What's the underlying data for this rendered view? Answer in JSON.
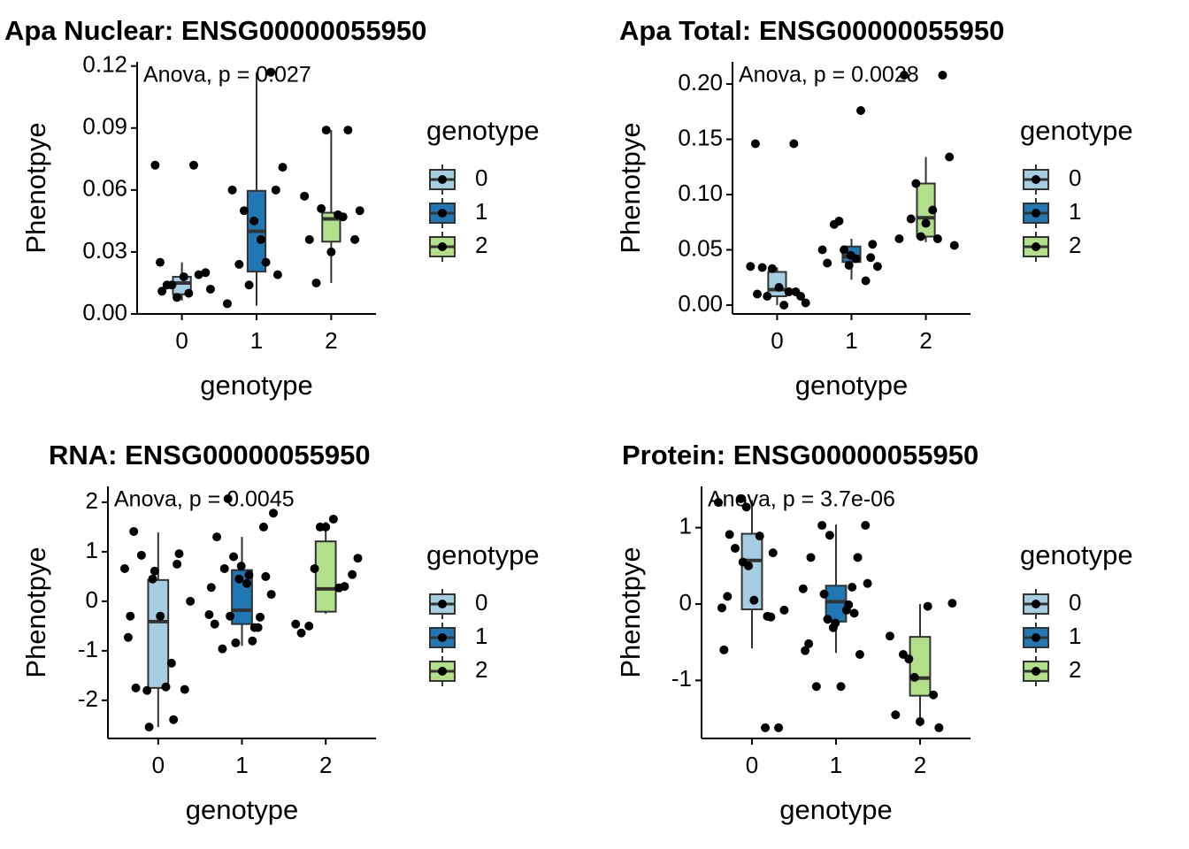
{
  "chart_data": [
    {
      "type": "box",
      "title": "Apa Nuclear: ENSG00000055950",
      "annotation": "Anova, p = 0.027",
      "x_label": "genotype",
      "y_label": "Phenotpye",
      "legend_title": "genotype",
      "categories": [
        "0",
        "1",
        "2"
      ],
      "ylim": [
        0,
        0.122
      ],
      "yticks": [
        {
          "value": 0,
          "label": "0.00"
        },
        {
          "value": 0.03,
          "label": "0.03"
        },
        {
          "value": 0.06,
          "label": "0.06"
        },
        {
          "value": 0.09,
          "label": "0.09"
        },
        {
          "value": 0.12,
          "label": "0.12"
        }
      ],
      "series": [
        {
          "name": "0",
          "color": "#a6cee3",
          "box": {
            "whislo": 0.0065,
            "q1": 0.0095,
            "median": 0.015,
            "q3": 0.018,
            "whishi": 0.025
          },
          "points": [
            0.025,
            0.019,
            0.008,
            0.072,
            0.072,
            0.014,
            0.012,
            0.01,
            0.014,
            0.02,
            0.018,
            0.011
          ]
        },
        {
          "name": "1",
          "color": "#1f78b4",
          "box": {
            "whislo": 0.004,
            "q1": 0.0205,
            "median": 0.04,
            "q3": 0.0596,
            "whishi": 0.117
          },
          "points": [
            0.06,
            0.045,
            0.06,
            0.117,
            0.014,
            0.005,
            0.025,
            0.05,
            0.071,
            0.036,
            0.024,
            0.019
          ]
        },
        {
          "name": "2",
          "color": "#b2df8a",
          "box": {
            "whislo": 0.015,
            "q1": 0.035,
            "median": 0.046,
            "q3": 0.049,
            "whishi": 0.089
          },
          "points": [
            0.03,
            0.036,
            0.089,
            0.089,
            0.057,
            0.047,
            0.051,
            0.05,
            0.048,
            0.015,
            0.036
          ]
        }
      ]
    },
    {
      "type": "box",
      "title": "Apa Total: ENSG00000055950",
      "annotation": "Anova, p = 0.0028",
      "x_label": "genotype",
      "y_label": "Phenotpye",
      "legend_title": "genotype",
      "categories": [
        "0",
        "1",
        "2"
      ],
      "ylim": [
        -0.008,
        0.22
      ],
      "yticks": [
        {
          "value": 0,
          "label": "0.00"
        },
        {
          "value": 0.05,
          "label": "0.05"
        },
        {
          "value": 0.1,
          "label": "0.10"
        },
        {
          "value": 0.15,
          "label": "0.15"
        },
        {
          "value": 0.2,
          "label": "0.20"
        }
      ],
      "series": [
        {
          "name": "0",
          "color": "#a6cee3",
          "box": {
            "whislo": 0.0,
            "q1": 0.008,
            "median": 0.014,
            "q3": 0.03,
            "whishi": 0.034
          },
          "points": [
            0.146,
            0.146,
            0.033,
            0.035,
            0.012,
            0.008,
            0.002,
            0.0,
            0.034,
            0.008,
            0.016,
            0.01,
            0.012
          ]
        },
        {
          "name": "1",
          "color": "#1f78b4",
          "box": {
            "whislo": 0.023,
            "q1": 0.039,
            "median": 0.044,
            "q3": 0.053,
            "whishi": 0.06
          },
          "points": [
            0.043,
            0.036,
            0.038,
            0.022,
            0.05,
            0.05,
            0.176,
            0.076,
            0.035,
            0.042,
            0.073,
            0.055,
            0.045
          ]
        },
        {
          "name": "2",
          "color": "#b2df8a",
          "box": {
            "whislo": 0.057,
            "q1": 0.062,
            "median": 0.079,
            "q3": 0.11,
            "whishi": 0.134
          },
          "points": [
            0.074,
            0.208,
            0.208,
            0.062,
            0.06,
            0.06,
            0.11,
            0.054,
            0.086,
            0.078,
            0.134
          ]
        }
      ]
    },
    {
      "type": "box",
      "title": "RNA: ENSG00000055950",
      "annotation": "Anova, p = 0.0045",
      "x_label": "genotype",
      "y_label": "Phenotpye",
      "legend_title": "genotype",
      "categories": [
        "0",
        "1",
        "2"
      ],
      "ylim": [
        -2.77,
        2.32
      ],
      "yticks": [
        -2,
        -1,
        0,
        1,
        2
      ],
      "series": [
        {
          "name": "0",
          "color": "#a6cee3",
          "box": {
            "whislo": -2.54,
            "q1": -1.75,
            "median": -0.41,
            "q3": 0.43,
            "whishi": 1.39
          },
          "points": [
            1.41,
            0.75,
            0.45,
            -0.73,
            -1.25,
            -1.8,
            0.0,
            -1.73,
            0.93,
            -1.78,
            -0.3,
            -1.75,
            0.96,
            0.61,
            -0.3,
            -2.39,
            -2.54,
            0.66
          ]
        },
        {
          "name": "1",
          "color": "#1f78b4",
          "box": {
            "whislo": -0.9,
            "q1": -0.46,
            "median": -0.18,
            "q3": 0.63,
            "whishi": 1.3
          },
          "points": [
            1.5,
            0.45,
            -0.46,
            -0.53,
            0.9,
            -0.27,
            -0.8,
            2.07,
            0.14,
            0.36,
            -0.96,
            0.5,
            0.71,
            1.3,
            -0.32,
            -0.84,
            0.28,
            -0.53,
            -0.3,
            1.78,
            0.53,
            0.66
          ]
        },
        {
          "name": "2",
          "color": "#b2df8a",
          "box": {
            "whislo": -0.25,
            "q1": -0.21,
            "median": 0.25,
            "q3": 1.21,
            "whishi": 1.6
          },
          "points": [
            1.5,
            -0.64,
            0.3,
            1.5,
            -0.46,
            0.27,
            0.66,
            0.87,
            1.66,
            -0.5,
            0.54
          ]
        }
      ]
    },
    {
      "type": "box",
      "title": "Protein: ENSG00000055950",
      "annotation": "Anova, p = 3.7e-06",
      "x_label": "genotype",
      "y_label": "Phenotpye",
      "legend_title": "genotype",
      "categories": [
        "0",
        "1",
        "2"
      ],
      "ylim": [
        -1.76,
        1.54
      ],
      "yticks": [
        -1,
        0,
        1
      ],
      "series": [
        {
          "name": "0",
          "color": "#a6cee3",
          "box": {
            "whislo": -0.58,
            "q1": -0.07,
            "median": 0.57,
            "q3": 0.92,
            "whishi": 1.36
          },
          "points": [
            0.1,
            -0.17,
            1.27,
            -0.05,
            -1.62,
            1.38,
            -0.08,
            0.89,
            0.73,
            -1.62,
            0.05,
            0.91,
            0.67,
            0.5,
            -0.6,
            -0.16,
            0.55,
            1.33
          ]
        },
        {
          "name": "1",
          "color": "#1f78b4",
          "box": {
            "whislo": -0.64,
            "q1": -0.23,
            "median": 0.03,
            "q3": 0.24,
            "whishi": 1.04
          },
          "points": [
            0.61,
            -0.31,
            -0.52,
            0.22,
            -0.2,
            0.2,
            -0.08,
            1.03,
            1.03,
            -1.08,
            -1.08,
            -0.66,
            -0.25,
            0.61,
            -0.12,
            0.9,
            -0.61,
            -0.01,
            0.13,
            0.27
          ]
        },
        {
          "name": "2",
          "color": "#b2df8a",
          "box": {
            "whislo": -1.6,
            "q1": -1.2,
            "median": -0.97,
            "q3": -0.43,
            "whishi": 0.0
          },
          "points": [
            -1.54,
            -1.45,
            -1.62,
            -0.96,
            -0.42,
            -1.19,
            -0.72,
            0.01,
            -0.03,
            -0.66
          ]
        }
      ]
    }
  ]
}
